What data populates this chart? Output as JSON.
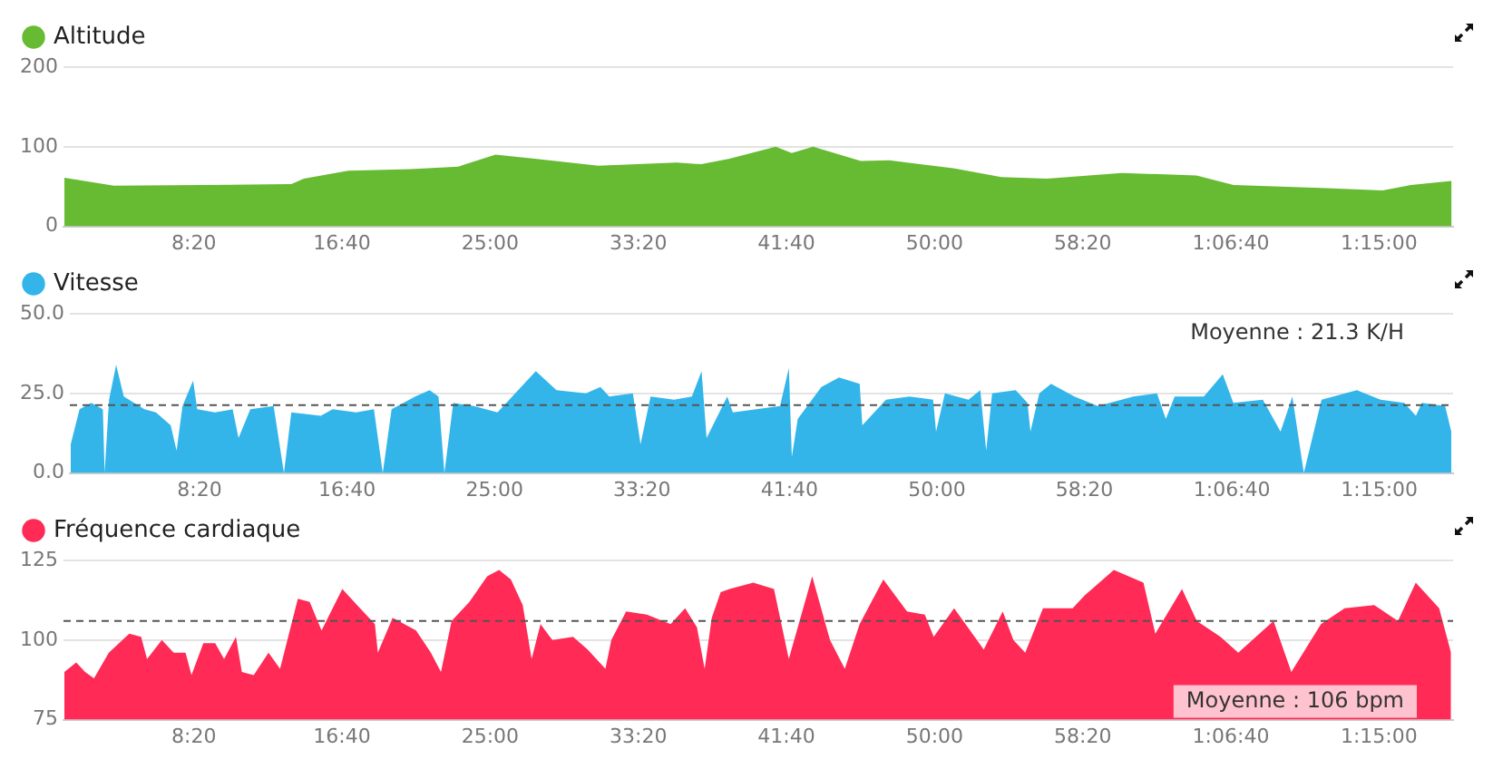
{
  "chart_data": [
    {
      "type": "area",
      "legend": "top left",
      "grid": "y",
      "marker": "none",
      "xlim": [
        60,
        4750
      ],
      "ylim": [
        0,
        200
      ],
      "yticks": [
        0,
        100,
        200
      ],
      "xticks": [
        {
          "value": 500,
          "label": "8:20"
        },
        {
          "value": 1000,
          "label": "16:40"
        },
        {
          "value": 1500,
          "label": "25:00"
        },
        {
          "value": 2000,
          "label": "33:20"
        },
        {
          "value": 2500,
          "label": "41:40"
        },
        {
          "value": 3000,
          "label": "50:00"
        },
        {
          "value": 3500,
          "label": "58:20"
        },
        {
          "value": 4000,
          "label": "1:06:40"
        },
        {
          "value": 4500,
          "label": "1:15:00"
        }
      ],
      "series": [
        {
          "name": "Altitude",
          "color": "#66bb33",
          "x": [
            63,
            230,
            829,
            871,
            1021,
            1231,
            1392,
            1518,
            1650,
            1865,
            2129,
            2213,
            2308,
            2464,
            2518,
            2590,
            2751,
            2847,
            3063,
            3225,
            3380,
            3632,
            3884,
            4009,
            4326,
            4512,
            4608,
            4745
          ],
          "values": [
            61,
            51,
            53,
            60,
            70,
            72,
            75,
            90,
            85,
            76,
            80,
            78,
            85,
            100,
            92,
            100,
            82,
            83,
            73,
            62,
            60,
            67,
            64,
            52,
            48,
            45,
            52,
            57
          ]
        }
      ]
    },
    {
      "type": "area",
      "legend": "top left",
      "grid": "y",
      "marker": "none",
      "xlim": [
        60,
        4750
      ],
      "ylim": [
        0,
        50
      ],
      "yticks": [
        {
          "value": 0,
          "label": "0.0"
        },
        {
          "value": 25,
          "label": "25.0"
        },
        {
          "value": 50,
          "label": "50.0"
        }
      ],
      "xticks": [
        {
          "value": 500,
          "label": "8:20"
        },
        {
          "value": 1000,
          "label": "16:40"
        },
        {
          "value": 1500,
          "label": "25:00"
        },
        {
          "value": 2000,
          "label": "33:20"
        },
        {
          "value": 2500,
          "label": "41:40"
        },
        {
          "value": 3000,
          "label": "50:00"
        },
        {
          "value": 3500,
          "label": "58:20"
        },
        {
          "value": 4000,
          "label": "1:06:40"
        },
        {
          "value": 4500,
          "label": "1:15:00"
        }
      ],
      "ref_lines": [
        {
          "axis": "y",
          "value": 21.3,
          "label": "Moyenne : 21.3 K/H",
          "color": "#555555",
          "line_style": "dashed"
        }
      ],
      "series": [
        {
          "name": "Vitesse",
          "color": "#33b5ea",
          "x": [
            63,
            93,
            133,
            172,
            178,
            193,
            217,
            243,
            313,
            352,
            402,
            422,
            442,
            478,
            492,
            552,
            612,
            632,
            672,
            751,
            786,
            811,
            911,
            951,
            1031,
            1091,
            1121,
            1151,
            1231,
            1280,
            1310,
            1330,
            1360,
            1430,
            1510,
            1570,
            1640,
            1710,
            1810,
            1859,
            1889,
            1969,
            1995,
            2029,
            2109,
            2169,
            2202,
            2219,
            2289,
            2308,
            2468,
            2498,
            2508,
            2528,
            2608,
            2668,
            2738,
            2747,
            2827,
            2907,
            2987,
            2997,
            3027,
            3107,
            3147,
            3167,
            3187,
            3267,
            3307,
            3317,
            3347,
            3387,
            3466,
            3546,
            3666,
            3746,
            3776,
            3806,
            3905,
            3969,
            4005,
            4105,
            4165,
            4205,
            4244,
            4304,
            4424,
            4504,
            4584,
            4624,
            4644,
            4723,
            4744
          ],
          "values": [
            9,
            20,
            22,
            20,
            0,
            23,
            34,
            24,
            20,
            19,
            15,
            7,
            21,
            29,
            20,
            19,
            20,
            11,
            20,
            21,
            0,
            19,
            18,
            20,
            19,
            20,
            0,
            20,
            24,
            26,
            24,
            0,
            22,
            21,
            19,
            25,
            32,
            26,
            25,
            27,
            24,
            25,
            9,
            24,
            23,
            24,
            32,
            11,
            24,
            19,
            21,
            33,
            5,
            17,
            27,
            30,
            28,
            15,
            23,
            24,
            23,
            13,
            25,
            23,
            26,
            7,
            25,
            26,
            22,
            13,
            25,
            28,
            24,
            21,
            24,
            25,
            17,
            24,
            24,
            31,
            22,
            23,
            13,
            24,
            0,
            23,
            26,
            23,
            22,
            18,
            22,
            21,
            13
          ]
        }
      ]
    },
    {
      "type": "area",
      "legend": "top left",
      "grid": "y",
      "marker": "none",
      "xlim": [
        60,
        4750
      ],
      "ylim": [
        75,
        125
      ],
      "yticks": [
        75,
        100,
        125
      ],
      "xticks": [
        {
          "value": 500,
          "label": "8:20"
        },
        {
          "value": 1000,
          "label": "16:40"
        },
        {
          "value": 1500,
          "label": "25:00"
        },
        {
          "value": 2000,
          "label": "33:20"
        },
        {
          "value": 2500,
          "label": "41:40"
        },
        {
          "value": 3000,
          "label": "50:00"
        },
        {
          "value": 3500,
          "label": "58:20"
        },
        {
          "value": 4000,
          "label": "1:06:40"
        },
        {
          "value": 4500,
          "label": "1:15:00"
        }
      ],
      "ref_lines": [
        {
          "axis": "y",
          "value": 106,
          "label": "Moyenne : 106 bpm",
          "color": "#555555",
          "line_style": "dashed"
        }
      ],
      "series": [
        {
          "name": "Fréquence cardiaque",
          "color": "#ff2a55",
          "x": [
            63,
            103,
            133,
            163,
            213,
            282,
            322,
            342,
            392,
            432,
            472,
            492,
            532,
            572,
            602,
            642,
            662,
            702,
            752,
            791,
            851,
            891,
            931,
            1001,
            1051,
            1111,
            1121,
            1171,
            1250,
            1300,
            1334,
            1370,
            1430,
            1490,
            1530,
            1570,
            1610,
            1640,
            1670,
            1710,
            1780,
            1829,
            1889,
            1909,
            1959,
            2029,
            2109,
            2158,
            2198,
            2224,
            2248,
            2278,
            2308,
            2388,
            2458,
            2508,
            2587,
            2647,
            2697,
            2747,
            2827,
            2907,
            2967,
            2997,
            3066,
            3166,
            3230,
            3266,
            3306,
            3366,
            3466,
            3506,
            3605,
            3705,
            3745,
            3835,
            3885,
            3965,
            4025,
            4144,
            4204,
            4304,
            4384,
            4484,
            4564,
            4624,
            4703,
            4743
          ],
          "values": [
            90,
            93,
            90,
            88,
            96,
            102,
            101,
            94,
            100,
            96,
            96,
            89,
            99,
            99,
            94,
            101,
            90,
            89,
            96,
            91,
            113,
            112,
            103,
            116,
            111,
            105,
            96,
            107,
            103,
            96,
            90,
            106,
            112,
            120,
            122,
            119,
            111,
            94,
            105,
            100,
            101,
            97,
            91,
            100,
            109,
            108,
            105,
            110,
            104,
            91,
            107,
            115,
            116,
            118,
            116,
            94,
            120,
            100,
            91,
            105,
            119,
            109,
            108,
            101,
            110,
            97,
            109,
            100,
            96,
            110,
            110,
            114,
            122,
            118,
            102,
            116,
            106,
            101,
            96,
            106,
            90,
            105,
            110,
            111,
            106,
            118,
            110,
            96
          ]
        }
      ]
    }
  ]
}
